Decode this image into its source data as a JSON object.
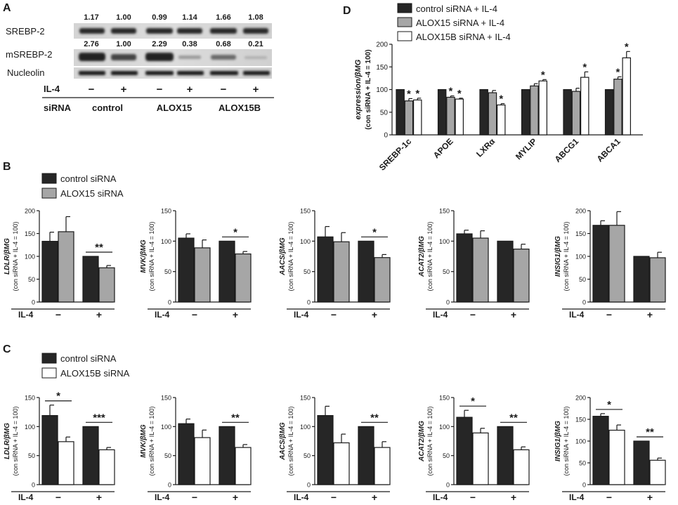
{
  "panel_labels": {
    "a": "A",
    "b": "B",
    "c": "C",
    "d": "D"
  },
  "colors": {
    "control": "#262626",
    "alox15": "#a6a6a6",
    "alox15b": "#ffffff",
    "axis": "#1a1a1a"
  },
  "panel_a": {
    "rows": {
      "srebp2": {
        "label": "SREBP-2",
        "values": [
          "1.17",
          "1.00",
          "0.99",
          "1.14",
          "1.66",
          "1.08"
        ]
      },
      "msrebp2": {
        "label": "mSREBP-2",
        "values": [
          "2.76",
          "1.00",
          "2.29",
          "0.38",
          "0.68",
          "0.21"
        ]
      },
      "nucleolin": {
        "label": "Nucleolin"
      }
    },
    "il4": {
      "label": "IL-4",
      "signs": [
        "−",
        "+",
        "−",
        "+",
        "−",
        "+"
      ]
    },
    "sirna": {
      "label": "siRNA",
      "groups": [
        "control",
        "ALOX15",
        "ALOX15B"
      ]
    }
  },
  "panel_b": {
    "legend": [
      {
        "label": "control siRNA",
        "color": "#262626"
      },
      {
        "label": "ALOX15 siRNA",
        "color": "#a6a6a6"
      }
    ]
  },
  "panel_c": {
    "legend": [
      {
        "label": "control siRNA",
        "color": "#262626"
      },
      {
        "label": "ALOX15B siRNA",
        "color": "#ffffff"
      }
    ]
  },
  "panel_d": {
    "legend": [
      {
        "label": "control siRNA + IL-4",
        "color": "#262626"
      },
      {
        "label": "ALOX15 siRNA + IL-4",
        "color": "#a6a6a6"
      },
      {
        "label": "ALOX15B siRNA + IL-4",
        "color": "#ffffff"
      }
    ]
  },
  "chart_data": [
    {
      "id": "D",
      "type": "bar",
      "ylabel_gene": "expression/βMG",
      "ylabel_sub": "(con siRNA + IL-4 = 100)",
      "ylim": [
        0,
        200
      ],
      "yticks": [
        0,
        50,
        100,
        150,
        200
      ],
      "categories": [
        "SREBP-1c",
        "APOE",
        "LXRα",
        "MYLIP",
        "ABCG1",
        "ABCA1"
      ],
      "series": [
        {
          "name": "control siRNA + IL-4",
          "color": "#262626",
          "values": [
            100,
            100,
            100,
            100,
            100,
            100
          ],
          "errors": [
            0,
            0,
            0,
            0,
            0,
            0
          ],
          "stars": [
            "",
            "",
            "",
            "",
            "",
            ""
          ]
        },
        {
          "name": "ALOX15 siRNA + IL-4",
          "color": "#a6a6a6",
          "values": [
            75,
            83,
            93,
            108,
            96,
            123
          ],
          "errors": [
            5,
            3,
            5,
            5,
            7,
            5
          ],
          "stars": [
            "*",
            "*",
            "",
            "",
            "",
            "*"
          ]
        },
        {
          "name": "ALOX15B siRNA + IL-4",
          "color": "#ffffff",
          "values": [
            77,
            79,
            66,
            119,
            127,
            170
          ],
          "errors": [
            4,
            2,
            3,
            3,
            12,
            14
          ],
          "stars": [
            "*",
            "*",
            "*",
            "*",
            "*",
            "*"
          ]
        }
      ]
    },
    {
      "id": "B1",
      "type": "bar",
      "gene": "LDLR/βMG",
      "ylabel_sub": "(con siRNA + IL-4 = 100)",
      "ylim": [
        0,
        200
      ],
      "yticks": [
        0,
        50,
        100,
        150,
        200
      ],
      "xlabel": "IL-4",
      "groups": [
        "−",
        "+"
      ],
      "series": [
        {
          "name": "control siRNA",
          "color": "#262626",
          "values": [
            133,
            100
          ],
          "errors": [
            20,
            0
          ]
        },
        {
          "name": "ALOX15 siRNA",
          "color": "#a6a6a6",
          "values": [
            154,
            75
          ],
          "errors": [
            33,
            5
          ]
        }
      ],
      "sig": [
        {
          "group": 1,
          "label": "**"
        }
      ]
    },
    {
      "id": "B2",
      "type": "bar",
      "gene": "MVK/βMG",
      "ylabel_sub": "(con siRNA + IL-4 = 100)",
      "ylim": [
        0,
        150
      ],
      "yticks": [
        0,
        50,
        100,
        150
      ],
      "xlabel": "IL-4",
      "groups": [
        "−",
        "+"
      ],
      "series": [
        {
          "name": "control siRNA",
          "color": "#262626",
          "values": [
            105,
            100
          ],
          "errors": [
            7,
            0
          ]
        },
        {
          "name": "ALOX15 siRNA",
          "color": "#a6a6a6",
          "values": [
            89,
            79
          ],
          "errors": [
            13,
            4
          ]
        }
      ],
      "sig": [
        {
          "group": 1,
          "label": "*"
        }
      ]
    },
    {
      "id": "B3",
      "type": "bar",
      "gene": "AACS/βMG",
      "ylabel_sub": "(con siRNA + IL-4 = 100)",
      "ylim": [
        0,
        150
      ],
      "yticks": [
        0,
        50,
        100,
        150
      ],
      "xlabel": "IL-4",
      "groups": [
        "−",
        "+"
      ],
      "series": [
        {
          "name": "control siRNA",
          "color": "#262626",
          "values": [
            107,
            100
          ],
          "errors": [
            17,
            0
          ]
        },
        {
          "name": "ALOX15 siRNA",
          "color": "#a6a6a6",
          "values": [
            99,
            73
          ],
          "errors": [
            15,
            5
          ]
        }
      ],
      "sig": [
        {
          "group": 1,
          "label": "*"
        }
      ]
    },
    {
      "id": "B4",
      "type": "bar",
      "gene": "ACAT2/βMG",
      "ylabel_sub": "(con siRNA + IL-4 = 100)",
      "ylim": [
        0,
        150
      ],
      "yticks": [
        0,
        50,
        100,
        150
      ],
      "xlabel": "IL-4",
      "groups": [
        "−",
        "+"
      ],
      "series": [
        {
          "name": "control siRNA",
          "color": "#262626",
          "values": [
            112,
            100
          ],
          "errors": [
            6,
            0
          ]
        },
        {
          "name": "ALOX15 siRNA",
          "color": "#a6a6a6",
          "values": [
            105,
            87
          ],
          "errors": [
            12,
            8
          ]
        }
      ],
      "sig": []
    },
    {
      "id": "B5",
      "type": "bar",
      "gene": "INSIG1/βMG",
      "ylabel_sub": "(con siRNA + IL-4 = 100)",
      "ylim": [
        0,
        200
      ],
      "yticks": [
        0,
        50,
        100,
        150,
        200
      ],
      "xlabel": "IL-4",
      "groups": [
        "−",
        "+"
      ],
      "series": [
        {
          "name": "control siRNA",
          "color": "#262626",
          "values": [
            168,
            100
          ],
          "errors": [
            10,
            0
          ]
        },
        {
          "name": "ALOX15 siRNA",
          "color": "#a6a6a6",
          "values": [
            168,
            97
          ],
          "errors": [
            30,
            12
          ]
        }
      ],
      "sig": []
    },
    {
      "id": "C1",
      "type": "bar",
      "gene": "LDLR/βMG",
      "ylabel_sub": "(con siRNA + IL-4 = 100)",
      "ylim": [
        0,
        150
      ],
      "yticks": [
        0,
        50,
        100,
        150
      ],
      "xlabel": "IL-4",
      "groups": [
        "−",
        "+"
      ],
      "series": [
        {
          "name": "control siRNA",
          "color": "#262626",
          "values": [
            119,
            100
          ],
          "errors": [
            18,
            0
          ]
        },
        {
          "name": "ALOX15B siRNA",
          "color": "#ffffff",
          "values": [
            74,
            60
          ],
          "errors": [
            8,
            4
          ]
        }
      ],
      "sig": [
        {
          "group": 0,
          "label": "*"
        },
        {
          "group": 1,
          "label": "***"
        }
      ]
    },
    {
      "id": "C2",
      "type": "bar",
      "gene": "MVK/βMG",
      "ylabel_sub": "(con siRNA + IL-4 = 100)",
      "ylim": [
        0,
        150
      ],
      "yticks": [
        0,
        50,
        100,
        150
      ],
      "xlabel": "IL-4",
      "groups": [
        "−",
        "+"
      ],
      "series": [
        {
          "name": "control siRNA",
          "color": "#262626",
          "values": [
            105,
            100
          ],
          "errors": [
            8,
            0
          ]
        },
        {
          "name": "ALOX15B siRNA",
          "color": "#ffffff",
          "values": [
            81,
            64
          ],
          "errors": [
            13,
            5
          ]
        }
      ],
      "sig": [
        {
          "group": 1,
          "label": "**"
        }
      ]
    },
    {
      "id": "C3",
      "type": "bar",
      "gene": "AACS/βMG",
      "ylabel_sub": "(con siRNA + IL-4 = 100)",
      "ylim": [
        0,
        150
      ],
      "yticks": [
        0,
        50,
        100,
        150
      ],
      "xlabel": "IL-4",
      "groups": [
        "−",
        "+"
      ],
      "series": [
        {
          "name": "control siRNA",
          "color": "#262626",
          "values": [
            119,
            100
          ],
          "errors": [
            16,
            0
          ]
        },
        {
          "name": "ALOX15B siRNA",
          "color": "#ffffff",
          "values": [
            72,
            64
          ],
          "errors": [
            15,
            10
          ]
        }
      ],
      "sig": [
        {
          "group": 1,
          "label": "**"
        }
      ]
    },
    {
      "id": "C4",
      "type": "bar",
      "gene": "ACAT2/βMG",
      "ylabel_sub": "(con siRNA + IL-4 = 100)",
      "ylim": [
        0,
        150
      ],
      "yticks": [
        0,
        50,
        100,
        150
      ],
      "xlabel": "IL-4",
      "groups": [
        "−",
        "+"
      ],
      "series": [
        {
          "name": "control siRNA",
          "color": "#262626",
          "values": [
            116,
            100
          ],
          "errors": [
            12,
            0
          ]
        },
        {
          "name": "ALOX15B siRNA",
          "color": "#ffffff",
          "values": [
            89,
            60
          ],
          "errors": [
            8,
            5
          ]
        }
      ],
      "sig": [
        {
          "group": 0,
          "label": "*"
        },
        {
          "group": 1,
          "label": "**"
        }
      ]
    },
    {
      "id": "C5",
      "type": "bar",
      "gene": "INSIG1/βMG",
      "ylabel_sub": "(con siRNA + IL-4 = 100)",
      "ylim": [
        0,
        200
      ],
      "yticks": [
        0,
        50,
        100,
        150,
        200
      ],
      "xlabel": "IL-4",
      "groups": [
        "−",
        "+"
      ],
      "series": [
        {
          "name": "control siRNA",
          "color": "#262626",
          "values": [
            157,
            100
          ],
          "errors": [
            6,
            0
          ]
        },
        {
          "name": "ALOX15B siRNA",
          "color": "#ffffff",
          "values": [
            125,
            56
          ],
          "errors": [
            12,
            5
          ]
        }
      ],
      "sig": [
        {
          "group": 0,
          "label": "*"
        },
        {
          "group": 1,
          "label": "**"
        }
      ]
    }
  ]
}
